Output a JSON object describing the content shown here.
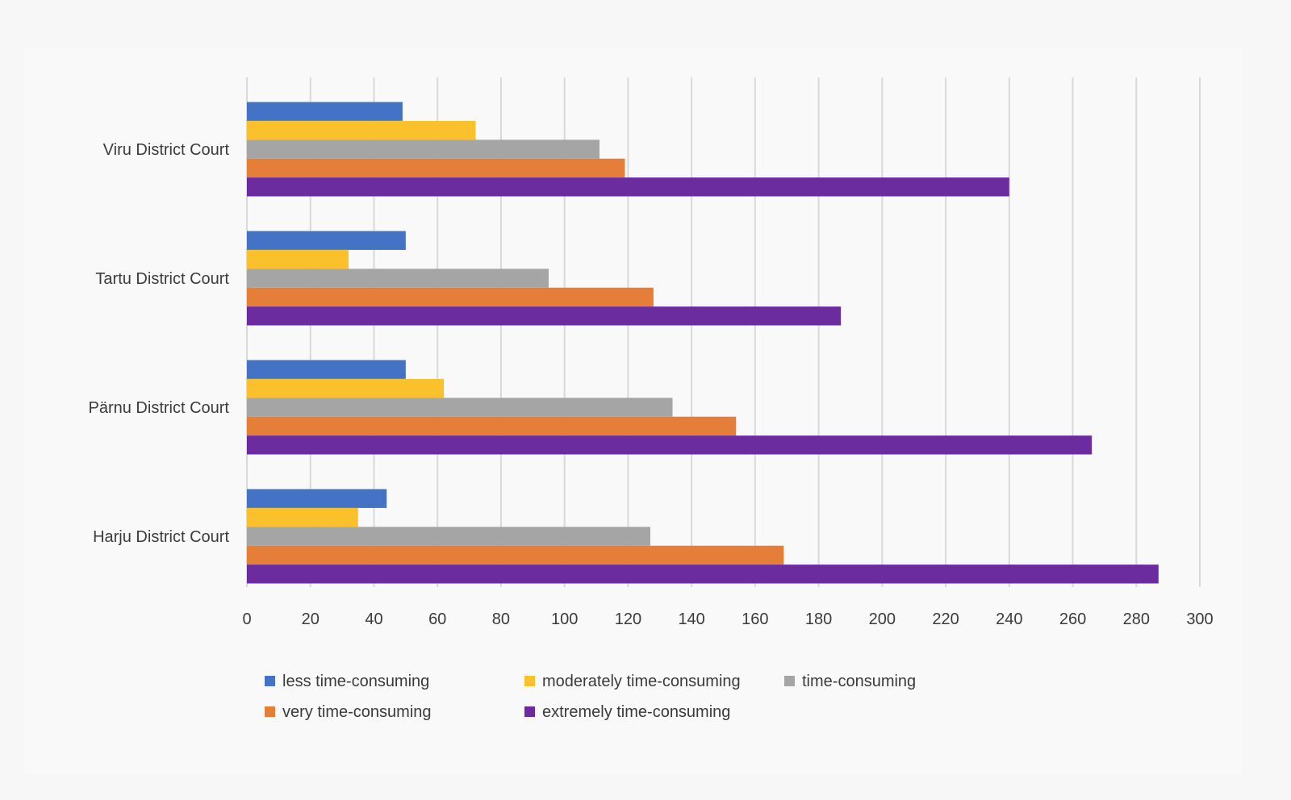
{
  "chart_data": {
    "type": "bar",
    "orientation": "horizontal",
    "categories": [
      "Harju District Court",
      "Pärnu District Court",
      "Tartu District Court",
      "Viru District Court"
    ],
    "series": [
      {
        "name": "less time-consuming",
        "color": "#4472c4",
        "values": [
          44,
          50,
          50,
          49
        ]
      },
      {
        "name": "moderately time-consuming",
        "color": "#fbc12d",
        "values": [
          35,
          62,
          32,
          72
        ]
      },
      {
        "name": "time-consuming",
        "color": "#a5a5a5",
        "values": [
          127,
          134,
          95,
          111
        ]
      },
      {
        "name": "very time-consuming",
        "color": "#e57e38",
        "values": [
          169,
          154,
          128,
          119
        ]
      },
      {
        "name": "extremely time-consuming",
        "color": "#6a2c9f",
        "values": [
          287,
          266,
          187,
          240
        ]
      }
    ],
    "xlim": [
      0,
      300
    ],
    "xticks": [
      0,
      20,
      40,
      60,
      80,
      100,
      120,
      140,
      160,
      180,
      200,
      220,
      240,
      260,
      280,
      300
    ],
    "grid": "vertical",
    "legend_position": "bottom",
    "title": "",
    "xlabel": "",
    "ylabel": ""
  }
}
